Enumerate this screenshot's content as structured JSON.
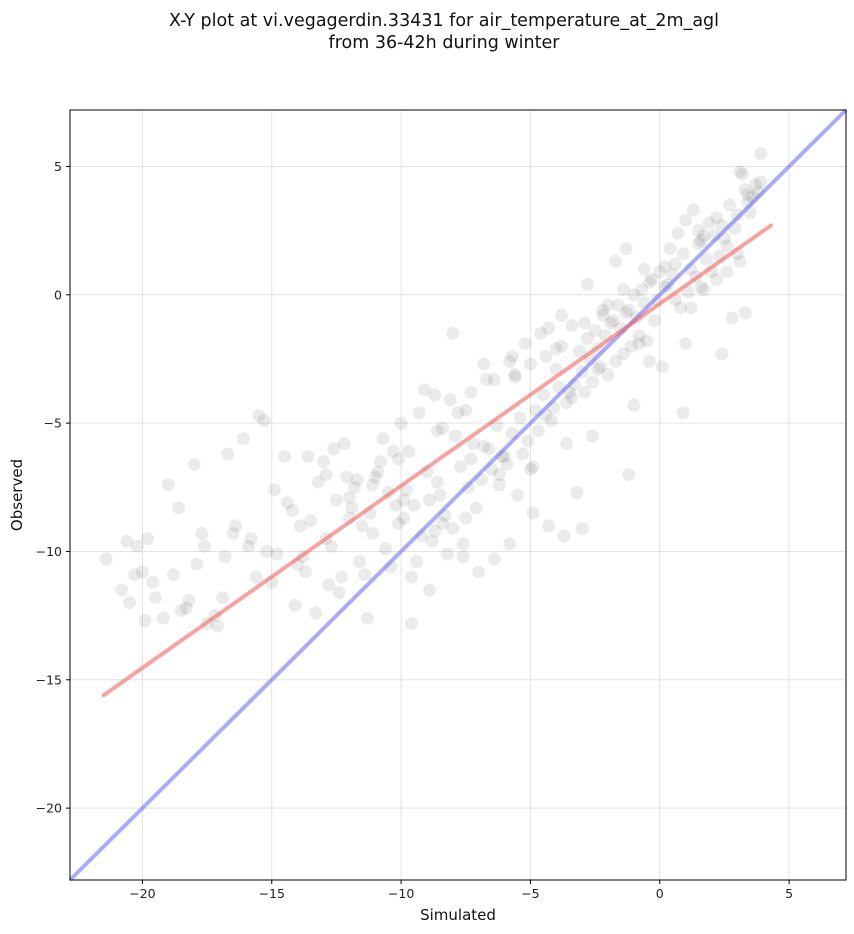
{
  "chart_data": {
    "type": "scatter",
    "title_lines": [
      "X-Y plot at vi.vegagerdin.33431 for air_temperature_at_2m_agl",
      "from 36-42h during winter"
    ],
    "xlabel": "Simulated",
    "ylabel": "Observed",
    "xlim": [
      -22.8,
      7.2
    ],
    "ylim": [
      -22.8,
      7.2
    ],
    "xticks": [
      -20,
      -15,
      -10,
      -5,
      0,
      5
    ],
    "yticks": [
      -20,
      -15,
      -10,
      -5,
      0,
      5
    ],
    "xtick_labels": [
      "−20",
      "−15",
      "−10",
      "−5",
      "0",
      "5"
    ],
    "ytick_labels": [
      "−20",
      "−15",
      "−10",
      "−5",
      "0",
      "5"
    ],
    "grid": true,
    "colors": {
      "points": "#000000",
      "identity_line": "#6666ee",
      "fit_line": "#ee6666"
    },
    "identity_line": {
      "x": [
        -22.8,
        7.2
      ],
      "y": [
        -22.8,
        7.2
      ]
    },
    "fit_line": {
      "x": [
        -21.5,
        4.3
      ],
      "y": [
        -15.6,
        2.7
      ]
    },
    "series": [
      {
        "x": [
          -21.4,
          -20.6,
          -20.2,
          -19.8,
          -20.5,
          -20.8,
          -19.5,
          -19.9,
          -20.0,
          -19.2,
          -18.8,
          -18.5,
          -18.2,
          -17.9,
          -17.5,
          -17.2,
          -16.8,
          -16.5,
          -18.0,
          -19.0,
          -17.6,
          -16.1,
          -15.8,
          -15.5,
          -15.2,
          -14.9,
          -14.5,
          -14.2,
          -13.9,
          -13.5,
          -13.2,
          -12.9,
          -12.5,
          -12.1,
          -11.8,
          -11.5,
          -11.2,
          -10.9,
          -10.5,
          -10.2,
          -14.8,
          -15.6,
          -13.7,
          -16.4,
          -12.8,
          -14.1,
          -11.6,
          -12.3,
          -13.3,
          -15.0,
          -18.3,
          -17.1,
          -16.9,
          -19.6,
          -20.3,
          -14.4,
          -13.0,
          -12.0,
          -11.0,
          -10.8,
          -11.9,
          -11.1,
          -12.7,
          -13.8,
          -10.4,
          -11.4,
          -12.4,
          -9.5,
          -9.8,
          -10.1,
          -9.2,
          -8.9,
          -8.6,
          -8.3,
          -8.0,
          -7.7,
          -7.4,
          -7.1,
          -6.8,
          -6.5,
          -9.7,
          -9.0,
          -8.5,
          -7.9,
          -7.3,
          -6.9,
          -8.8,
          -8.2,
          -7.6,
          -9.4,
          -10.6,
          -9.9,
          -8.4,
          -7.8,
          -7.2,
          -6.6,
          -6.3,
          -6.0,
          -5.7,
          -5.4,
          -5.1,
          -4.8,
          -4.5,
          -4.2,
          -3.9,
          -3.6,
          -6.2,
          -5.9,
          -5.3,
          -4.7,
          -4.1,
          -3.5,
          -5.6,
          -5.0,
          -4.4,
          -3.8,
          -6.7,
          -5.8,
          -5.2,
          -4.6,
          -4.0,
          -3.4,
          -3.3,
          -3.0,
          -2.7,
          -2.4,
          -2.1,
          -1.8,
          -1.5,
          -1.2,
          -0.9,
          -0.6,
          -3.1,
          -2.8,
          -2.5,
          -2.2,
          -1.9,
          -1.6,
          -1.3,
          -1.0,
          -0.7,
          -0.4,
          -2.9,
          -2.6,
          -2.3,
          -2.0,
          -1.7,
          -1.4,
          -1.1,
          -0.8,
          -0.5,
          -0.2,
          -0.3,
          0.0,
          0.3,
          0.6,
          0.9,
          1.2,
          1.5,
          1.8,
          2.1,
          2.4,
          -0.1,
          0.2,
          0.5,
          0.8,
          1.1,
          1.4,
          1.7,
          2.0,
          2.3,
          2.6,
          2.7,
          3.0,
          3.3,
          3.6,
          3.9,
          2.9,
          3.2,
          3.5,
          3.8,
          3.1,
          3.4,
          3.7,
          0.4,
          0.7,
          1.0,
          1.3,
          1.6,
          1.9,
          2.2,
          2.5,
          -10.0,
          -9.3,
          -8.7,
          -8.1,
          -7.5,
          -5.5,
          -4.9,
          -4.3,
          -3.7,
          -10.3,
          -11.7,
          -12.6,
          -9.6,
          -8.9,
          -7.0,
          -6.4,
          -5.8,
          -3.2,
          -2.6,
          -1.0,
          0.1,
          1.0,
          2.8,
          3.3,
          3.0,
          1.5,
          -0.6,
          -1.4,
          -2.2,
          -2.9,
          -4.4,
          -5.6,
          -6.8,
          -8.0,
          -9.1,
          -10.7,
          -12.2,
          -13.6,
          -15.3,
          -16.7,
          -18.6,
          -6.1,
          -4.0,
          -2.0,
          0.6,
          2.2,
          -7.6,
          -9.6,
          -3.0,
          -1.2,
          0.9,
          2.4,
          -11.3,
          -8.4,
          -5.0,
          -6.4,
          -3.8,
          -1.7,
          1.7,
          3.4,
          -17.7,
          -15.9,
          -14.0,
          -12.0,
          -10.1,
          -8.6,
          -7.3,
          -5.7,
          -4.3,
          -2.8,
          -1.3,
          0.2,
          1.6,
          3.1,
          -0.8,
          -2.4,
          -3.6,
          -4.9,
          -6.2,
          -7.5,
          -8.7,
          -9.9,
          -11.1,
          -12.9,
          -3.4,
          -0.4,
          1.2,
          2.6,
          3.9
        ],
        "y": [
          -10.3,
          -9.6,
          -9.8,
          -9.5,
          -12.0,
          -11.5,
          -11.8,
          -12.7,
          -10.8,
          -12.6,
          -10.9,
          -12.3,
          -11.9,
          -10.5,
          -12.8,
          -12.5,
          -10.2,
          -9.3,
          -6.6,
          -7.4,
          -9.8,
          -5.6,
          -9.5,
          -4.7,
          -10.0,
          -7.6,
          -6.3,
          -8.4,
          -9.0,
          -8.8,
          -7.3,
          -9.5,
          -8.0,
          -7.1,
          -7.5,
          -9.0,
          -8.5,
          -6.9,
          -7.7,
          -8.2,
          -10.1,
          -11.0,
          -10.8,
          -9.0,
          -11.3,
          -12.1,
          -10.4,
          -11.0,
          -12.4,
          -11.2,
          -12.2,
          -12.9,
          -11.8,
          -11.2,
          -10.9,
          -8.1,
          -6.5,
          -7.9,
          -7.1,
          -6.5,
          -8.3,
          -9.3,
          -9.8,
          -10.2,
          -10.6,
          -10.9,
          -11.6,
          -8.2,
          -7.6,
          -8.9,
          -9.4,
          -8.0,
          -7.3,
          -8.6,
          -9.1,
          -6.7,
          -7.5,
          -8.3,
          -5.9,
          -6.8,
          -6.1,
          -6.9,
          -7.8,
          -5.5,
          -6.4,
          -7.2,
          -9.6,
          -10.1,
          -9.7,
          -10.4,
          -9.9,
          -8.7,
          -5.2,
          -4.6,
          -5.8,
          -6.0,
          -5.1,
          -6.3,
          -5.4,
          -4.8,
          -5.7,
          -4.5,
          -3.9,
          -4.9,
          -3.6,
          -4.2,
          -7.0,
          -6.6,
          -6.2,
          -5.3,
          -4.4,
          -3.8,
          -3.1,
          -2.7,
          -2.4,
          -2.0,
          -3.3,
          -2.6,
          -1.9,
          -1.5,
          -2.9,
          -1.2,
          -3.5,
          -3.0,
          -2.5,
          -2.1,
          -1.6,
          -1.0,
          -1.3,
          -0.6,
          -0.9,
          -0.3,
          -2.2,
          -1.7,
          -1.4,
          -0.8,
          -1.1,
          -0.4,
          -0.7,
          0.0,
          0.2,
          0.5,
          -3.8,
          -3.4,
          -2.8,
          -3.1,
          -2.6,
          -2.3,
          -2.0,
          -1.6,
          -1.8,
          -1.0,
          0.6,
          0.9,
          0.4,
          1.2,
          1.6,
          1.0,
          2.0,
          1.4,
          2.3,
          2.7,
          -0.2,
          0.3,
          0.8,
          -0.5,
          0.1,
          0.7,
          0.2,
          0.9,
          1.5,
          1.9,
          3.5,
          3.1,
          4.1,
          3.8,
          4.4,
          2.6,
          4.7,
          3.2,
          4.0,
          4.8,
          3.6,
          4.3,
          1.8,
          2.4,
          2.9,
          3.3,
          2.1,
          2.8,
          3.0,
          2.2,
          -5.0,
          -4.6,
          -3.9,
          -4.1,
          -4.5,
          -7.8,
          -8.5,
          -9.0,
          -9.4,
          -6.1,
          -7.2,
          -6.0,
          -11.0,
          -11.5,
          -10.8,
          -10.3,
          -9.7,
          -7.7,
          -5.5,
          -4.3,
          -2.8,
          -1.9,
          -0.9,
          -0.7,
          1.6,
          2.5,
          1.0,
          0.2,
          -0.6,
          -1.1,
          -4.7,
          -3.2,
          -2.7,
          -1.5,
          -3.7,
          -5.6,
          -5.8,
          -6.3,
          -4.9,
          -6.2,
          -8.3,
          -6.3,
          -2.1,
          -0.4,
          -0.2,
          0.6,
          -10.2,
          -12.8,
          -9.1,
          -7.0,
          -4.6,
          -2.3,
          -12.6,
          -8.9,
          -6.8,
          -3.3,
          -0.8,
          1.3,
          2.3,
          3.9,
          -9.3,
          -9.8,
          -10.5,
          -8.7,
          -6.4,
          -5.3,
          -3.8,
          -2.4,
          -1.3,
          0.4,
          1.8,
          1.1,
          0.3,
          1.3,
          -1.9,
          -2.9,
          -5.8,
          -6.7,
          -7.4,
          -8.7,
          -9.2,
          -8.0,
          -7.4,
          -7.0,
          -4.0,
          -2.6,
          -0.5,
          0.9,
          5.5
        ]
      }
    ]
  }
}
